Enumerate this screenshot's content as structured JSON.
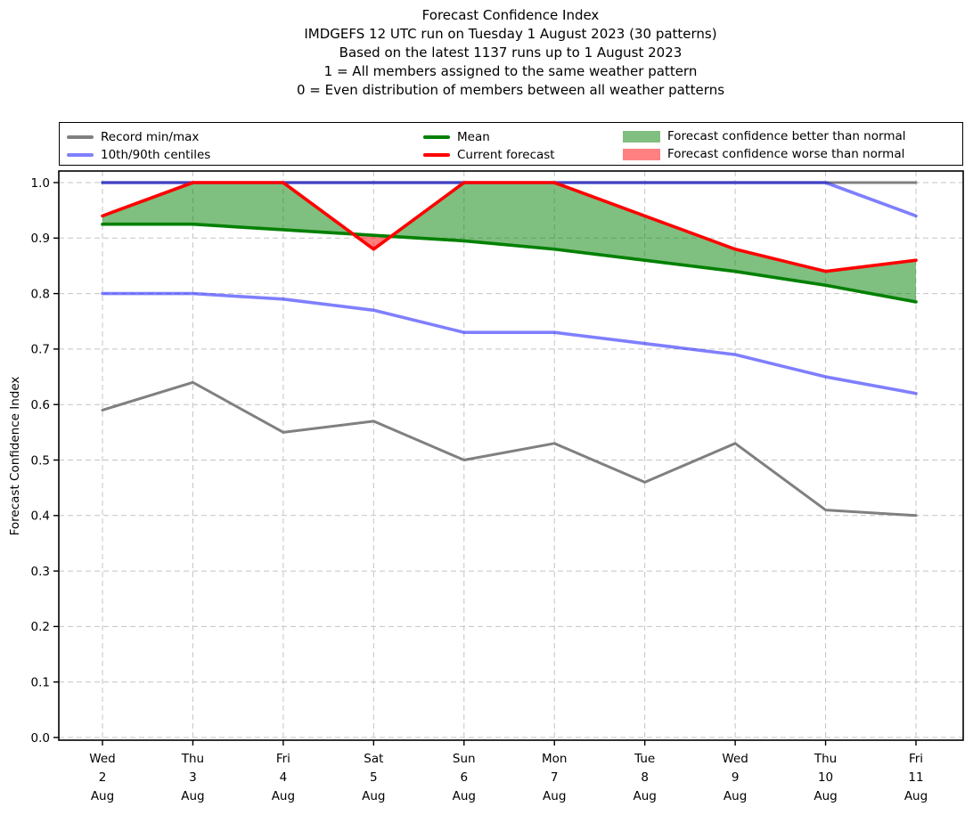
{
  "title": {
    "lines": [
      "Forecast Confidence Index",
      "IMDGEFS 12 UTC run on Tuesday 1 August 2023 (30 patterns)",
      "Based on the latest 1137 runs up to 1 August 2023",
      "1 = All members assigned to the same weather pattern",
      "0 = Even distribution of members between all weather patterns"
    ]
  },
  "legend": {
    "items": [
      {
        "label": "Record min/max",
        "type": "line",
        "color": "#808080"
      },
      {
        "label": "10th/90th centiles",
        "type": "line",
        "color": "#7f7fff"
      },
      {
        "label": "Mean",
        "type": "line",
        "color": "#008000"
      },
      {
        "label": "Current forecast",
        "type": "line",
        "color": "#ff0000"
      },
      {
        "label": "Forecast confidence better than normal",
        "type": "patch",
        "color": "#80bf80"
      },
      {
        "label": "Forecast confidence worse than normal",
        "type": "patch",
        "color": "#ff8080"
      }
    ]
  },
  "chart_data": {
    "type": "line",
    "title": "Forecast Confidence Index",
    "xlabel": "",
    "ylabel": "Forecast Confidence Index",
    "ylim": [
      0.0,
      1.0
    ],
    "y_ticks": [
      0.0,
      0.1,
      0.2,
      0.3,
      0.4,
      0.5,
      0.6,
      0.7,
      0.8,
      0.9,
      1.0
    ],
    "grid": true,
    "grid_style": "dashed",
    "legend_position": "top",
    "categories": [
      "Wed 2 Aug",
      "Thu 3 Aug",
      "Fri 4 Aug",
      "Sat 5 Aug",
      "Sun 6 Aug",
      "Mon 7 Aug",
      "Tue 8 Aug",
      "Wed 9 Aug",
      "Thu 10 Aug",
      "Fri 11 Aug"
    ],
    "series": [
      {
        "name": "Record max",
        "color": "#808080",
        "opacity": 1,
        "width": 3,
        "values": [
          1.0,
          1.0,
          1.0,
          1.0,
          1.0,
          1.0,
          1.0,
          1.0,
          1.0,
          1.0
        ]
      },
      {
        "name": "Record min",
        "color": "#808080",
        "opacity": 1,
        "width": 3,
        "values": [
          0.59,
          0.64,
          0.55,
          0.57,
          0.5,
          0.53,
          0.46,
          0.53,
          0.41,
          0.4
        ]
      },
      {
        "name": "90th centile",
        "color": "#0000ff",
        "opacity": 0.5,
        "width": 3.6,
        "values": [
          1.0,
          1.0,
          1.0,
          1.0,
          1.0,
          1.0,
          1.0,
          1.0,
          1.0,
          0.94
        ]
      },
      {
        "name": "10th centile",
        "color": "#0000ff",
        "opacity": 0.5,
        "width": 3.6,
        "values": [
          0.8,
          0.8,
          0.79,
          0.77,
          0.73,
          0.73,
          0.71,
          0.69,
          0.65,
          0.62
        ]
      },
      {
        "name": "Mean",
        "color": "#008000",
        "opacity": 1,
        "width": 3.6,
        "values": [
          0.925,
          0.925,
          0.915,
          0.905,
          0.895,
          0.88,
          0.86,
          0.84,
          0.815,
          0.785
        ]
      },
      {
        "name": "Current forecast",
        "color": "#ff0000",
        "opacity": 1,
        "width": 3.6,
        "values": [
          0.94,
          1.0,
          1.0,
          0.88,
          1.0,
          1.0,
          0.94,
          0.88,
          0.84,
          0.86
        ]
      }
    ],
    "fills": {
      "between": [
        "Current forecast",
        "Mean"
      ],
      "better_color": "#008000",
      "worse_color": "#ff0000",
      "opacity": 0.5
    },
    "grid_color": "#c4c4c4"
  }
}
